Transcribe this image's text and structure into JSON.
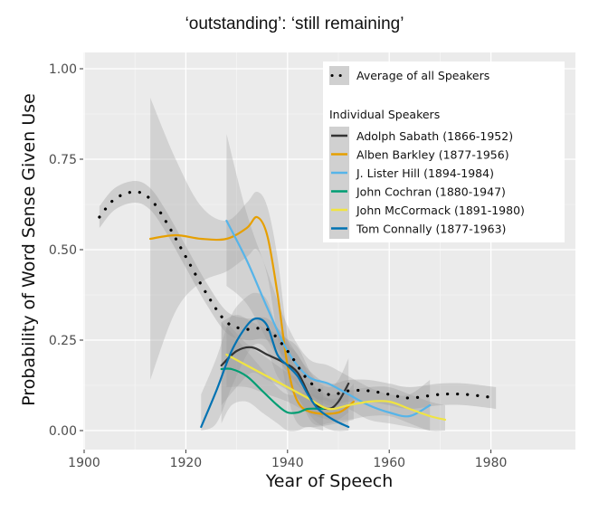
{
  "chart_data": {
    "type": "line",
    "title": "‘outstanding’: ‘still remaining’",
    "xlabel": "Year of Speech",
    "ylabel": "Probability of Word Sense Given Use",
    "xlim": [
      1899,
      1986
    ],
    "ylim": [
      -0.04,
      1.04
    ],
    "x_ticks": [
      1900,
      1920,
      1940,
      1960,
      1980
    ],
    "x_tick_labels": [
      "1900",
      "1920",
      "1940",
      "1960",
      "1980"
    ],
    "y_ticks": [
      0,
      0.25,
      0.5,
      0.75,
      1.0
    ],
    "y_tick_labels": [
      "0.00",
      "0.25",
      "0.50",
      "0.75",
      "1.00"
    ],
    "grid": true,
    "legend_placement": "top-right",
    "average": {
      "name": "Average of all Speakers",
      "style": "dotted",
      "color": "#000000",
      "x": [
        1903,
        1906,
        1910,
        1913,
        1916,
        1920,
        1924,
        1928,
        1932,
        1936,
        1940,
        1944,
        1948,
        1952,
        1956,
        1960,
        1964,
        1970,
        1975,
        1981
      ],
      "y": [
        0.59,
        0.64,
        0.66,
        0.64,
        0.58,
        0.48,
        0.38,
        0.3,
        0.28,
        0.28,
        0.22,
        0.14,
        0.1,
        0.11,
        0.11,
        0.1,
        0.09,
        0.1,
        0.1,
        0.09
      ],
      "band": 0.03
    },
    "legend_group_title": "Individual Speakers",
    "series": [
      {
        "name": "Adolph Sabath (1866-1952)",
        "color": "#333333",
        "x": [
          1927,
          1930,
          1933,
          1936,
          1939,
          1942,
          1945,
          1948,
          1950,
          1952
        ],
        "y": [
          0.18,
          0.22,
          0.23,
          0.21,
          0.19,
          0.16,
          0.08,
          0.06,
          0.08,
          0.13
        ],
        "band_lo": [
          0.07,
          0.12,
          0.16,
          0.14,
          0.12,
          0.09,
          0.02,
          0.02,
          0.03,
          0.05
        ],
        "band_hi": [
          0.3,
          0.32,
          0.3,
          0.28,
          0.26,
          0.23,
          0.15,
          0.12,
          0.14,
          0.2
        ]
      },
      {
        "name": "Alben Barkley (1877-1956)",
        "color": "#E69F00",
        "x": [
          1913,
          1918,
          1923,
          1928,
          1932,
          1934,
          1936,
          1938,
          1940,
          1942,
          1945,
          1950,
          1953
        ],
        "y": [
          0.53,
          0.54,
          0.53,
          0.53,
          0.56,
          0.59,
          0.54,
          0.38,
          0.18,
          0.08,
          0.05,
          0.05,
          0.08
        ],
        "band_lo": [
          0.14,
          0.33,
          0.41,
          0.44,
          0.48,
          0.5,
          0.43,
          0.26,
          0.1,
          0.02,
          0.01,
          0.02,
          0.03
        ],
        "band_hi": [
          0.92,
          0.75,
          0.62,
          0.58,
          0.63,
          0.66,
          0.62,
          0.48,
          0.26,
          0.14,
          0.1,
          0.09,
          0.13
        ]
      },
      {
        "name": "J. Lister Hill (1894-1984)",
        "color": "#56B4E9",
        "x": [
          1928,
          1932,
          1936,
          1940,
          1944,
          1948,
          1952,
          1956,
          1960,
          1964,
          1968
        ],
        "y": [
          0.58,
          0.47,
          0.34,
          0.22,
          0.15,
          0.13,
          0.1,
          0.07,
          0.05,
          0.04,
          0.07
        ],
        "band_lo": [
          0.4,
          0.35,
          0.25,
          0.16,
          0.1,
          0.08,
          0.06,
          0.03,
          0.02,
          0.01,
          0.0
        ],
        "band_hi": [
          0.82,
          0.6,
          0.44,
          0.29,
          0.2,
          0.18,
          0.15,
          0.12,
          0.1,
          0.1,
          0.14
        ]
      },
      {
        "name": "John Cochran (1880-1947)",
        "color": "#009E73",
        "x": [
          1927,
          1929,
          1932,
          1935,
          1938,
          1940,
          1942,
          1944,
          1947
        ],
        "y": [
          0.17,
          0.17,
          0.15,
          0.11,
          0.07,
          0.05,
          0.05,
          0.06,
          0.06
        ],
        "band_lo": [
          0.02,
          0.07,
          0.08,
          0.05,
          0.02,
          0.0,
          0.0,
          0.01,
          0.0
        ],
        "band_hi": [
          0.3,
          0.27,
          0.22,
          0.17,
          0.12,
          0.1,
          0.1,
          0.11,
          0.12
        ]
      },
      {
        "name": "John McCormack (1891-1980)",
        "color": "#F0E442",
        "x": [
          1928,
          1932,
          1936,
          1940,
          1944,
          1948,
          1952,
          1956,
          1960,
          1964,
          1968,
          1971
        ],
        "y": [
          0.21,
          0.18,
          0.15,
          0.12,
          0.09,
          0.06,
          0.07,
          0.08,
          0.08,
          0.06,
          0.04,
          0.03
        ],
        "band_lo": [
          0.12,
          0.12,
          0.1,
          0.08,
          0.05,
          0.03,
          0.03,
          0.04,
          0.04,
          0.02,
          0.0,
          0.0
        ],
        "band_hi": [
          0.3,
          0.24,
          0.2,
          0.16,
          0.13,
          0.1,
          0.11,
          0.12,
          0.12,
          0.1,
          0.08,
          0.07
        ]
      },
      {
        "name": "Tom Connally (1877-1963)",
        "color": "#0072B2",
        "x": [
          1923,
          1926,
          1929,
          1932,
          1934,
          1936,
          1938,
          1940,
          1942,
          1944,
          1946,
          1949,
          1952
        ],
        "y": [
          0.01,
          0.11,
          0.22,
          0.29,
          0.31,
          0.29,
          0.21,
          0.18,
          0.15,
          0.1,
          0.06,
          0.03,
          0.01
        ],
        "band_lo": [
          0.0,
          0.02,
          0.12,
          0.21,
          0.24,
          0.22,
          0.15,
          0.12,
          0.09,
          0.05,
          0.02,
          0.0,
          0.0
        ],
        "band_hi": [
          0.1,
          0.2,
          0.32,
          0.37,
          0.38,
          0.36,
          0.28,
          0.24,
          0.21,
          0.16,
          0.11,
          0.08,
          0.06
        ]
      }
    ]
  }
}
